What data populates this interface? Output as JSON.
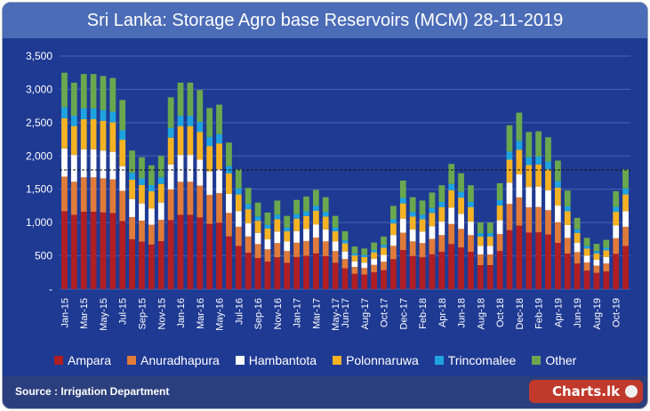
{
  "chart_data": {
    "type": "bar",
    "stacked": true,
    "title": "Sri Lanka: Storage  Agro base Reservoirs (MCM) 28-11-2019",
    "ylim": [
      0,
      3500
    ],
    "yticks": [
      "-",
      "500",
      "1,000",
      "1,500",
      "2,000",
      "2,500",
      "3,000",
      "3,500"
    ],
    "ytick_values": [
      0,
      500,
      1000,
      1500,
      2000,
      2500,
      3000,
      3500
    ],
    "reference_line": 1790,
    "grid": true,
    "legend_position": "bottom",
    "xtick_labels": [
      "Jan-15",
      "Mar-15",
      "May-15",
      "Jul-15",
      "Sep-15",
      "Nov-15",
      "Jan-16",
      "Mar-16",
      "May-16",
      "Jul-16",
      "Sep-16",
      "Nov-16",
      "Jan-17",
      "Mar-17",
      "May-17",
      "Jun-17",
      "Aug-17",
      "Oct-17",
      "Dec-17",
      "Feb-18",
      "Apr-18",
      "Jun-18",
      "Aug-18",
      "Oct-18",
      "Dec-18",
      "Feb-19",
      "Apr-19",
      "Jun-19",
      "Aug-19",
      "Oct-19"
    ],
    "xtick_index": [
      0,
      2,
      4,
      6,
      8,
      10,
      12,
      14,
      16,
      18,
      20,
      22,
      24,
      26,
      28,
      29,
      31,
      33,
      35,
      37,
      39,
      41,
      43,
      45,
      47,
      49,
      51,
      53,
      55,
      57
    ],
    "totals": [
      3250,
      3100,
      3230,
      3230,
      3200,
      3170,
      2840,
      2080,
      1980,
      1860,
      2000,
      2880,
      3100,
      3100,
      2990,
      2720,
      2770,
      2200,
      1800,
      1520,
      1300,
      1150,
      1330,
      1100,
      1340,
      1390,
      1490,
      1380,
      1100,
      870,
      640,
      610,
      700,
      790,
      1250,
      1630,
      1380,
      1330,
      1450,
      1560,
      1880,
      1740,
      1560,
      1000,
      1000,
      1590,
      2460,
      2650,
      2360,
      2370,
      2280,
      1930,
      1480,
      1070,
      770,
      680,
      740,
      1470,
      1800
    ],
    "shares": {
      "Ampara": 0.36,
      "Anuradhapura": 0.16,
      "Hambantota": 0.13,
      "Polonnaruwa": 0.14,
      "Trincomalee": 0.05,
      "Other": 0.16
    },
    "series": [
      {
        "name": "Ampara",
        "color": "#b01e23"
      },
      {
        "name": "Anuradhapura",
        "color": "#e07b39"
      },
      {
        "name": "Hambantota",
        "color": "#ffffff"
      },
      {
        "name": "Polonnaruwa",
        "color": "#f5b324"
      },
      {
        "name": "Trincomalee",
        "color": "#1fa3e0"
      },
      {
        "name": "Other",
        "color": "#6aa84f"
      }
    ]
  },
  "footer": {
    "source": "Source : Irrigation Department",
    "logo": "Charts.lk"
  }
}
